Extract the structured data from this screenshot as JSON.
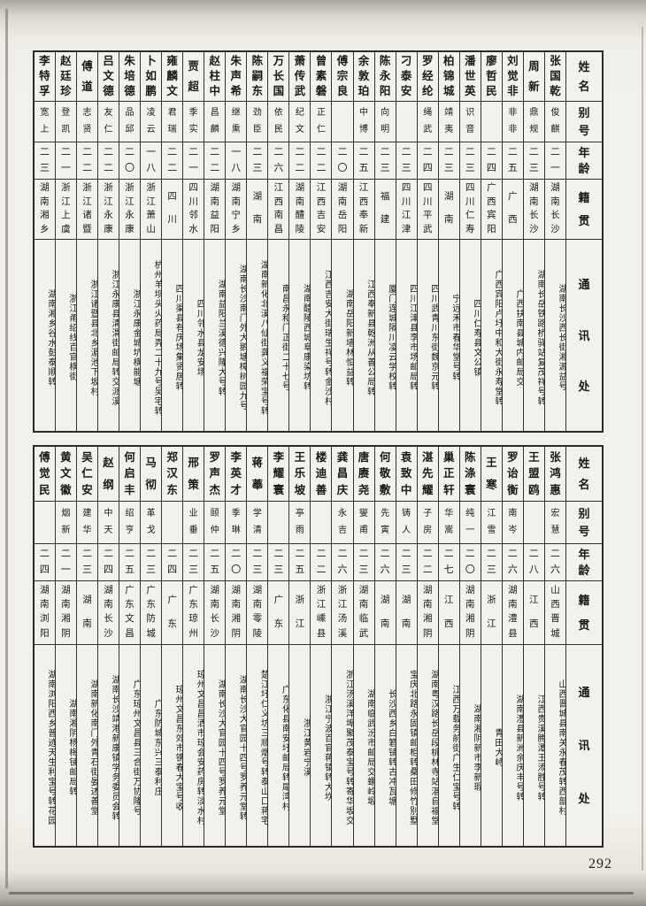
{
  "page": {
    "number": "292"
  },
  "row_headers": [
    "姓名",
    "别号",
    "年龄",
    "籍贯",
    "通讯处"
  ],
  "tables": [
    {
      "people": [
        {
          "name": "张国乾",
          "alias": "俊麒",
          "age": "二一",
          "origin": "湖南长沙",
          "address": "湖南长沙西长街湘源益号"
        },
        {
          "name": "周新",
          "alias": "鼎规",
          "age": "二三",
          "origin": "湖南长沙",
          "address": "湖南长岳铁路桥驿站复茂祥号转"
        },
        {
          "name": "刘觉非",
          "alias": "非非",
          "age": "二五",
          "origin": "广西",
          "address": "广西扶南县城内邮局交"
        },
        {
          "name": "廖哲民",
          "alias": "",
          "age": "二四",
          "origin": "广西宾阳",
          "address": "广西宾阳卢圩中和大街永寿堂转"
        },
        {
          "name": "潘世英",
          "alias": "识音",
          "age": "二三",
          "origin": "四川仁寿",
          "address": "四川仁寿县文公镇"
        },
        {
          "name": "柏锦城",
          "alias": "靖夷",
          "age": "二三",
          "origin": "湖南",
          "address": "宁远禾市春华堂号转"
        },
        {
          "name": "罗经纶",
          "alias": "绳武",
          "age": "二四",
          "origin": "四川平武",
          "address": "四川武青川东街魏京元转"
        },
        {
          "name": "刁泰安",
          "alias": "",
          "age": "二三",
          "origin": "四川江津",
          "address": "四川江津县李市场邮局转"
        },
        {
          "name": "陈永阳",
          "alias": "向明",
          "age": "二三",
          "origin": "福建",
          "address": "厦门连城隔川凌云学校转"
        },
        {
          "name": "余敦珀",
          "alias": "中博",
          "age": "二五",
          "origin": "江西奉新",
          "address": "江西奉新县乾洲从善公局转"
        },
        {
          "name": "傅宗良",
          "alias": "",
          "age": "二〇",
          "origin": "湖南岳阳",
          "address": "湖南岳阳新墙林恒益转"
        },
        {
          "name": "曾素磐",
          "alias": "正仁",
          "age": "二二",
          "origin": "江西吉安",
          "address": "江西吉安大街瑞生祥号转金沙村"
        },
        {
          "name": "萧传武",
          "alias": "纪文",
          "age": "二二",
          "origin": "湖南醴陵",
          "address": "湖南醴陵西城阜康染坊转"
        },
        {
          "name": "万长国",
          "alias": "依民",
          "age": "二六",
          "origin": "江西南昌",
          "address": "南昌永和门正街二十七号"
        },
        {
          "name": "陈嗣东",
          "alias": "劲臣",
          "age": "二三",
          "origin": "湖南",
          "address": "湖南新化北溪八仙街龚义福荣宝号转"
        },
        {
          "name": "朱声希",
          "alias": "继熏",
          "age": "一八",
          "origin": "湖南宁乡",
          "address": "湖南长沙南门外大鹅塘樟树园九号"
        },
        {
          "name": "赵柱中",
          "alias": "昌麟",
          "age": "二二",
          "origin": "湖南益阳",
          "address": "湖南益阳兰溪德兴隆大号转"
        },
        {
          "name": "贾超",
          "alias": "季实",
          "age": "二一",
          "origin": "四川邻水",
          "address": "四川邻水县龙安场"
        },
        {
          "name": "雍麟文",
          "alias": "君瑞",
          "age": "二二",
          "origin": "四川",
          "address": "四川渠县有庆场集贤居转"
        },
        {
          "name": "卜如鹏",
          "alias": "凌云",
          "age": "一八",
          "origin": "浙江萧山",
          "address": "杭州羊坝头火药局弄二十九号吴宅转"
        },
        {
          "name": "朱培德",
          "alias": "品邱",
          "age": "二〇",
          "origin": "浙江永康",
          "address": "浙江永康金城坑横能塘"
        },
        {
          "name": "吕文德",
          "alias": "友仁",
          "age": "二二",
          "origin": "浙江永康",
          "address": "浙江永康县清渭街邮局转交派溪"
        },
        {
          "name": "傅道",
          "alias": "志贤",
          "age": "二二",
          "origin": "浙江诸暨",
          "address": "浙江诸暨县北乡湄池下坂村"
        },
        {
          "name": "赵廷珍",
          "alias": "登凯",
          "age": "二一",
          "origin": "浙江上虞",
          "address": "浙江甬绍线百官横街"
        },
        {
          "name": "李特孚",
          "alias": "宽上",
          "age": "二三",
          "origin": "湖南湘乡",
          "address": "湖南湘乡谷水彭泰顺转"
        }
      ]
    },
    {
      "people": [
        {
          "name": "张鸿惠",
          "alias": "宏慧",
          "age": "二六",
          "origin": "山西晋城",
          "address": "山西晋城县南关永春茂转西部村"
        },
        {
          "name": "王盟鸥",
          "alias": "",
          "age": "二八",
          "origin": "江西",
          "address": "江西贵溪腾潭王添胜号转"
        },
        {
          "name": "罗诒衡",
          "alias": "南岑",
          "age": "二六",
          "origin": "湖南澧县",
          "address": "湖南澧县新洲余庆丰号转"
        },
        {
          "name": "王寒",
          "alias": "江雪",
          "age": "二三",
          "origin": "浙江",
          "address": "青田大峙"
        },
        {
          "name": "陈涤寰",
          "alias": "纯一",
          "age": "二〇",
          "origin": "湖南湘阴",
          "address": "湖南湘阴新市李新瑕"
        },
        {
          "name": "巢正轩",
          "alias": "华嵩",
          "age": "二七",
          "origin": "江西",
          "address": "江西万载务前街广生仁宝号转"
        },
        {
          "name": "湛先耀",
          "alias": "子房",
          "age": "二二",
          "origin": "湖南湘阴",
          "address": "湖南粤汉路长岳段桃林寺站湛自福堂"
        },
        {
          "name": "袁致中",
          "alias": "铸人",
          "age": "二三",
          "origin": "湖南",
          "address": "宝庆北路永固镇邮柜转桑田修竹别墅"
        },
        {
          "name": "何敬敷",
          "alias": "先寅",
          "age": "二六",
          "origin": "湖南",
          "address": "长沙西乡白箬铺转古冲瓦塘"
        },
        {
          "name": "唐赓尧",
          "alias": "燮甫",
          "age": "二三",
          "origin": "湖南临武",
          "address": "湖南临武汾市邮局交螺岭塅"
        },
        {
          "name": "龚昌庆",
          "alias": "永吉",
          "age": "二六",
          "origin": "浙江汤溪",
          "address": "浙江汤溪洋埠聚茂泰宝号转寄华坂交"
        },
        {
          "name": "楼迪善",
          "alias": "",
          "age": "二二",
          "origin": "浙江嵊县",
          "address": "浙江宁波百官蒋镇转大坎"
        },
        {
          "name": "王乐坡",
          "alias": "亭雨",
          "age": "二五",
          "origin": "浙江",
          "address": "浙江黄岩宁溪"
        },
        {
          "name": "李耀寰",
          "alias": "",
          "age": "二三",
          "origin": "广东",
          "address": "广东化县南安圩邮局转犀湾村"
        },
        {
          "name": "蒋菶",
          "alias": "学清",
          "age": "二三",
          "origin": "湖南零陵",
          "address": "楚江圩仁义坊三顺烟号转泰山口蒋宅"
        },
        {
          "name": "李英才",
          "alias": "季琳",
          "age": "二〇",
          "origin": "湖南湘阴",
          "address": "湖南长沙大官园十四号罗养元堂转"
        },
        {
          "name": "罗声杰",
          "alias": "颐仲",
          "age": "二五",
          "origin": "湖南长沙",
          "address": "湖南长沙大官园十四号罗养元堂"
        },
        {
          "name": "邢策",
          "alias": "业垂",
          "age": "二三",
          "origin": "广东琼州",
          "address": "琼州文昌昌洒市琼会安药房转淡水村"
        },
        {
          "name": "郑汉东",
          "alias": "",
          "age": "二四",
          "origin": "广东",
          "address": "琼州文昌东郊市镌春大宝号收"
        },
        {
          "name": "马彻",
          "alias": "革戈",
          "age": "二三",
          "origin": "广东防城",
          "address": "广东防城东兴三泰利庄"
        },
        {
          "name": "何启丰",
          "alias": "绍亨",
          "age": "二五",
          "origin": "广东文昌",
          "address": "广东琼州文昌县三合街万协隆号"
        },
        {
          "name": "赵纲",
          "alias": "中天",
          "age": "二四",
          "origin": "湖南长沙",
          "address": "湖南长沙靖港新康镇学务委员会转"
        },
        {
          "name": "吴仁安",
          "alias": "建华",
          "age": "二三",
          "origin": "湖南",
          "address": "湖南新化南门外青石街晏述善堂"
        },
        {
          "name": "黄文徽",
          "alias": "烟新",
          "age": "二一",
          "origin": "湖南湘阴",
          "address": "湖南湘阴杨梅铺邮局转"
        },
        {
          "name": "傅觉民",
          "alias": "",
          "age": "二四",
          "origin": "湖南浏阳",
          "address": "湖南浏阳西乡普迹天生利宝号转花园"
        }
      ]
    }
  ]
}
